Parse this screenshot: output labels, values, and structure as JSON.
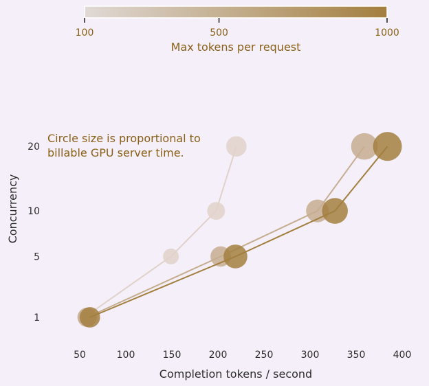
{
  "chart_data": {
    "type": "scatter",
    "xlabel": "Completion tokens / second",
    "ylabel": "Concurrency",
    "x_ticks": [
      50,
      100,
      150,
      200,
      250,
      300,
      350,
      400
    ],
    "y_ticks": [
      1,
      5,
      10,
      20
    ],
    "xlim": [
      25,
      410
    ],
    "y_scale": "square root",
    "annotation_lines": [
      "Circle size is proportional to",
      "billable GPU server time."
    ],
    "colorbar": {
      "label": "Max tokens per request",
      "ticks": [
        100,
        500,
        1000
      ],
      "range": [
        100,
        1000
      ],
      "colors": [
        "#e0d9d6",
        "#a37f3f"
      ]
    },
    "series": [
      {
        "max_tokens": 100,
        "color": "#e0d2ca",
        "points": [
          {
            "x": 55,
            "y": 1,
            "size": 0.22
          },
          {
            "x": 149,
            "y": 5,
            "size": 0.3
          },
          {
            "x": 198,
            "y": 10,
            "size": 0.38
          },
          {
            "x": 220,
            "y": 20,
            "size": 0.5
          }
        ]
      },
      {
        "max_tokens": 500,
        "color": "#c5ad90",
        "points": [
          {
            "x": 58,
            "y": 1,
            "size": 0.45
          },
          {
            "x": 203,
            "y": 5,
            "size": 0.5
          },
          {
            "x": 308,
            "y": 10,
            "size": 0.62
          },
          {
            "x": 359,
            "y": 20,
            "size": 0.85
          }
        ]
      },
      {
        "max_tokens": 1000,
        "color": "#a37f3f",
        "points": [
          {
            "x": 61,
            "y": 1,
            "size": 0.5
          },
          {
            "x": 219,
            "y": 5,
            "size": 0.68
          },
          {
            "x": 327,
            "y": 10,
            "size": 0.8
          },
          {
            "x": 384,
            "y": 20,
            "size": 1.0
          }
        ]
      }
    ]
  }
}
